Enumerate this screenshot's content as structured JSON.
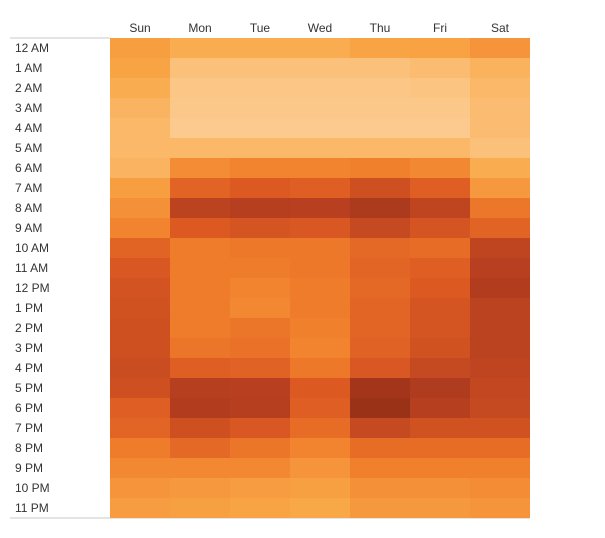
{
  "chart_data": {
    "type": "heatmap",
    "title": "",
    "xlabel": "",
    "ylabel": "",
    "legend": "none",
    "grid": false,
    "x_categories": [
      "Sun",
      "Mon",
      "Tue",
      "Wed",
      "Thu",
      "Fri",
      "Sat"
    ],
    "y_categories": [
      "12 AM",
      "1 AM",
      "2 AM",
      "3 AM",
      "4 AM",
      "5 AM",
      "6 AM",
      "7 AM",
      "8 AM",
      "9 AM",
      "10 AM",
      "11 AM",
      "12 PM",
      "1 PM",
      "2 PM",
      "3 PM",
      "4 PM",
      "5 PM",
      "6 PM",
      "7 PM",
      "8 PM",
      "9 PM",
      "10 PM",
      "11 PM"
    ],
    "value_scale": "relative intensity 0-100 (not labeled)",
    "color_scale": [
      "#fdd09a",
      "#f9a848",
      "#f1802c",
      "#dc5a22",
      "#b84020",
      "#9a3218"
    ],
    "values": [
      [
        25,
        18,
        18,
        18,
        22,
        23,
        30
      ],
      [
        22,
        8,
        8,
        8,
        8,
        10,
        15
      ],
      [
        18,
        5,
        5,
        5,
        5,
        6,
        12
      ],
      [
        14,
        4,
        4,
        4,
        4,
        4,
        10
      ],
      [
        12,
        3,
        3,
        3,
        3,
        3,
        10
      ],
      [
        12,
        12,
        12,
        12,
        12,
        12,
        8
      ],
      [
        14,
        34,
        38,
        38,
        40,
        36,
        18
      ],
      [
        25,
        55,
        60,
        58,
        68,
        58,
        28
      ],
      [
        32,
        78,
        82,
        80,
        88,
        76,
        45
      ],
      [
        38,
        60,
        64,
        62,
        72,
        64,
        55
      ],
      [
        55,
        42,
        44,
        44,
        52,
        50,
        76
      ],
      [
        62,
        42,
        42,
        44,
        54,
        58,
        80
      ],
      [
        65,
        42,
        38,
        42,
        52,
        60,
        84
      ],
      [
        66,
        42,
        36,
        42,
        54,
        64,
        78
      ],
      [
        68,
        42,
        46,
        40,
        54,
        64,
        78
      ],
      [
        68,
        46,
        48,
        38,
        56,
        66,
        78
      ],
      [
        70,
        58,
        56,
        44,
        62,
        72,
        76
      ],
      [
        68,
        82,
        80,
        60,
        94,
        86,
        74
      ],
      [
        58,
        84,
        82,
        58,
        100,
        82,
        72
      ],
      [
        54,
        68,
        62,
        50,
        72,
        66,
        66
      ],
      [
        42,
        52,
        46,
        38,
        50,
        50,
        50
      ],
      [
        36,
        36,
        36,
        30,
        40,
        40,
        40
      ],
      [
        30,
        28,
        26,
        24,
        32,
        32,
        34
      ],
      [
        26,
        24,
        22,
        20,
        28,
        28,
        30
      ]
    ]
  }
}
